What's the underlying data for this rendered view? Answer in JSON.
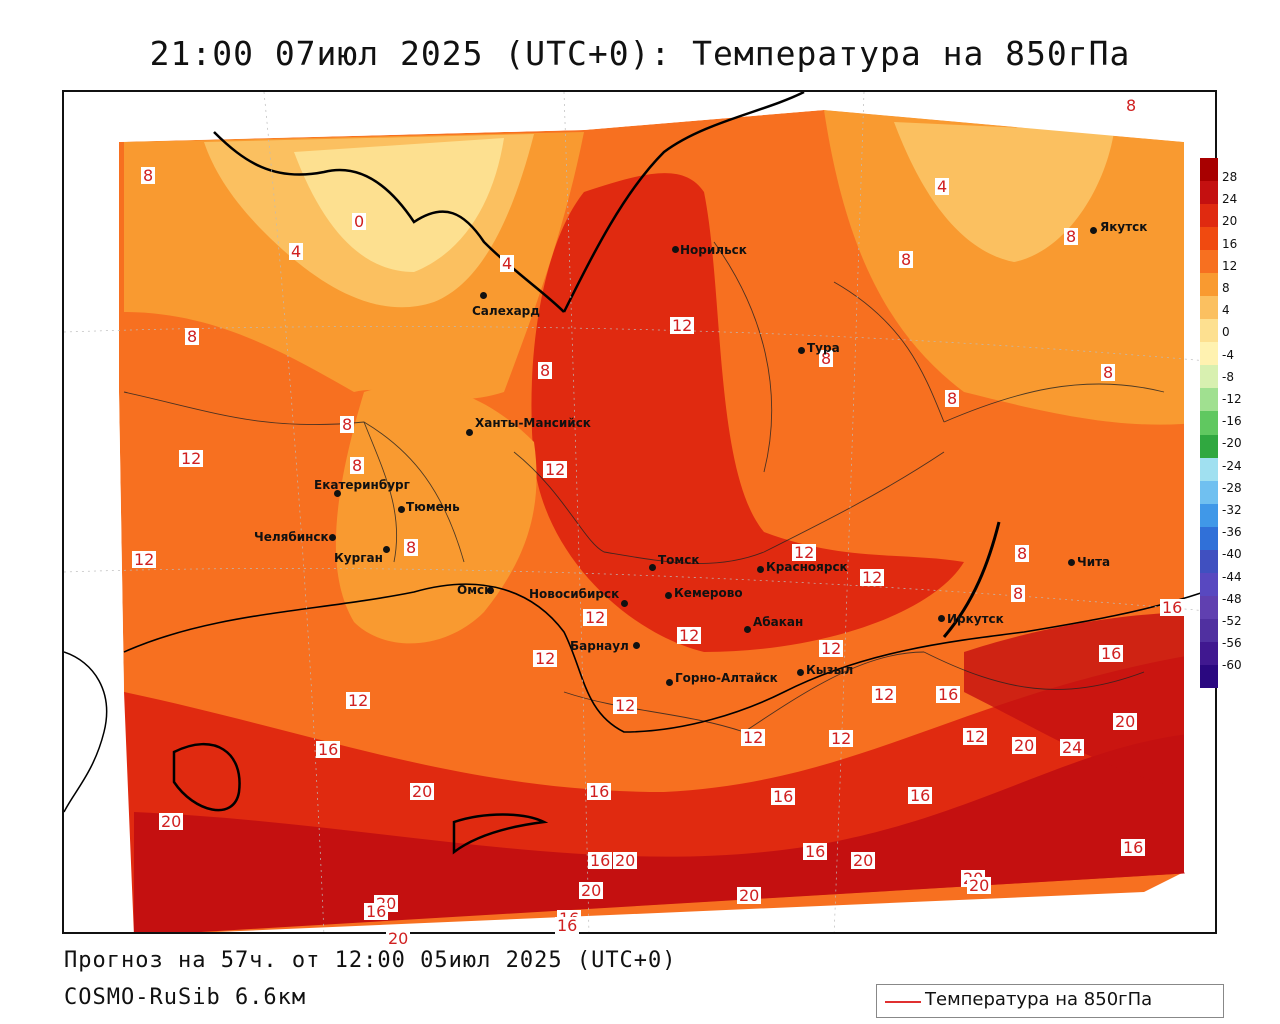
{
  "title": "21:00 07июл 2025 (UTC+0): Температура на 850гПа",
  "footer": {
    "forecast": "Прогноз на 57ч. от 12:00 05июл 2025 (UTC+0)",
    "model": "COSMO-RuSib 6.6км"
  },
  "legend": {
    "label": "Температура на 850гПа",
    "line_color": "#e03030"
  },
  "colorbar": {
    "ticks": [
      "28",
      "24",
      "20",
      "16",
      "12",
      "8",
      "4",
      "0",
      "-4",
      "-8",
      "-12",
      "-16",
      "-20",
      "-24",
      "-28",
      "-32",
      "-36",
      "-40",
      "-44",
      "-48",
      "-52",
      "-56",
      "-60"
    ],
    "colors": [
      "#a80000",
      "#c41010",
      "#e02a10",
      "#f04a10",
      "#f77020",
      "#f99a30",
      "#fbc060",
      "#fde090",
      "#fff2b0",
      "#d8f0b0",
      "#a0e090",
      "#60c860",
      "#30a840",
      "#a0e0f0",
      "#70c0f0",
      "#4098e8",
      "#3070d8",
      "#4050c0",
      "#5848c0",
      "#6040b0",
      "#5030a0",
      "#401890",
      "#2a0880"
    ]
  },
  "cities": [
    {
      "name": "Норильск"
    },
    {
      "name": "Салехард"
    },
    {
      "name": "Якутск"
    },
    {
      "name": "Тура"
    },
    {
      "name": "Ханты-Мансийск"
    },
    {
      "name": "Екатеринбург"
    },
    {
      "name": "Тюмень"
    },
    {
      "name": "Челябинск"
    },
    {
      "name": "Курган"
    },
    {
      "name": "Омск"
    },
    {
      "name": "Новосибирск"
    },
    {
      "name": "Томск"
    },
    {
      "name": "Кемерово"
    },
    {
      "name": "Красноярск"
    },
    {
      "name": "Барнаул"
    },
    {
      "name": "Абакан"
    },
    {
      "name": "Горно-Алтайск"
    },
    {
      "name": "Кызыл"
    },
    {
      "name": "Иркутск"
    },
    {
      "name": "Чита"
    }
  ],
  "isolines": [
    "8",
    "0",
    "4",
    "4",
    "8",
    "12",
    "8",
    "8",
    "12",
    "8",
    "12",
    "8",
    "8",
    "12",
    "8",
    "12",
    "8",
    "12",
    "12",
    "12",
    "12",
    "16",
    "16",
    "12",
    "12",
    "12",
    "16",
    "12",
    "12",
    "16",
    "16",
    "20",
    "20",
    "24",
    "20",
    "12",
    "12",
    "16",
    "16",
    "20",
    "16",
    "16",
    "20",
    "16",
    "20",
    "20",
    "16",
    "20",
    "20",
    "20",
    "16",
    "20",
    "20",
    "16",
    "8",
    "8",
    "8",
    "4",
    "8",
    "8"
  ]
}
